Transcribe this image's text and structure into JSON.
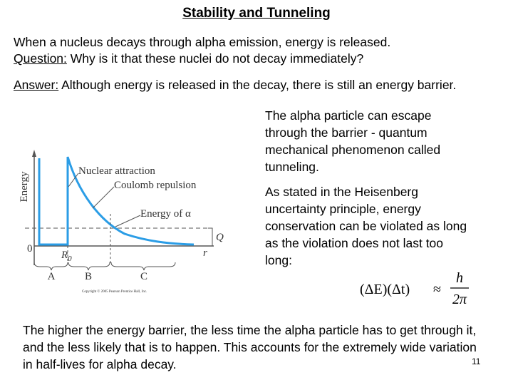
{
  "title": "Stability and Tunneling",
  "intro": {
    "line1": "When a nucleus decays through alpha emission, energy is released.",
    "question_label": "Question:",
    "question_text": " Why is it that these nuclei do not decay immediately?"
  },
  "answer": {
    "label": "Answer:",
    "text": " Although energy is released in the decay, there is still an energy barrier."
  },
  "right": {
    "para1": "The alpha particle can escape through the barrier - quantum mechanical phenomenon called tunneling.",
    "para2": "As stated in the Heisenberg uncertainty principle, energy conservation can be violated as long as the violation does not last too long:"
  },
  "formula": {
    "left": "(ΔE)(Δt)",
    "approx": "≈",
    "numerator": "h",
    "denominator": "2π"
  },
  "figure": {
    "y_axis": "Energy",
    "nuclear": "Nuclear attraction",
    "coulomb": "Coulomb repulsion",
    "energy_alpha": "Energy of α",
    "q": "Q",
    "zero": "0",
    "r0": "R",
    "r0_sub": "0",
    "r": "r",
    "a": "A",
    "b": "B",
    "c": "C",
    "copyright": "Copyright © 2005 Pearson Prentice Hall, Inc."
  },
  "conclusion": "The higher the energy barrier, the less time the alpha particle has to get through it, and the less likely that is to happen.  This accounts for the extremely wide variation in half-lives for alpha decay.",
  "page_number": "11"
}
